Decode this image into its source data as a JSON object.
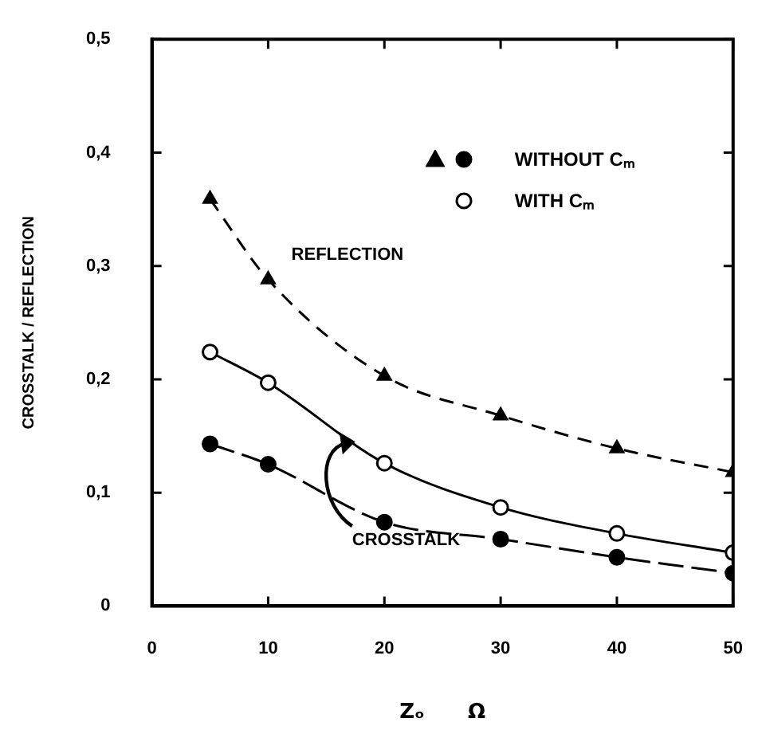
{
  "chart_data": {
    "type": "line",
    "xlabel": "Zₒ      Ω",
    "ylabel": "CROSSTALK / REFLECTION",
    "x": [
      5,
      10,
      20,
      30,
      40,
      50
    ],
    "series": [
      {
        "color": "#000000",
        "values": [
          0.359,
          0.288,
          0.203,
          0.168,
          0.139,
          0.118
        ],
        "marker": "triangle",
        "line_style": "dashed"
      },
      {
        "name": "WITH Cₘ",
        "color": "#000000",
        "values": [
          0.224,
          0.197,
          0.126,
          0.087,
          0.064,
          0.047
        ],
        "marker": "circle",
        "line_style": "solid"
      },
      {
        "name": "WITHOUT Cₘ",
        "color": "#000000",
        "values": [
          0.143,
          0.125,
          0.074,
          0.059,
          0.043,
          0.029
        ],
        "marker": "circle",
        "line_style": "dashed"
      }
    ],
    "xlim": [
      0,
      50
    ],
    "xticks": [
      0,
      10,
      20,
      30,
      40,
      50
    ],
    "ylim": [
      0,
      0.5
    ],
    "yticks": [
      0,
      {
        "value": 0.1,
        "label": "0,1"
      },
      {
        "value": 0.2,
        "label": "0,2"
      },
      {
        "value": 0.3,
        "label": "0,3"
      },
      {
        "value": 0.4,
        "label": "0,4"
      },
      {
        "value": 0.5,
        "label": "0,5"
      }
    ],
    "grid": false,
    "legend": "top right",
    "annotations": [
      "REFLECTION",
      {
        "text": "CROSSTALK",
        "x": 17.5,
        "y": 0.145
      }
    ]
  }
}
